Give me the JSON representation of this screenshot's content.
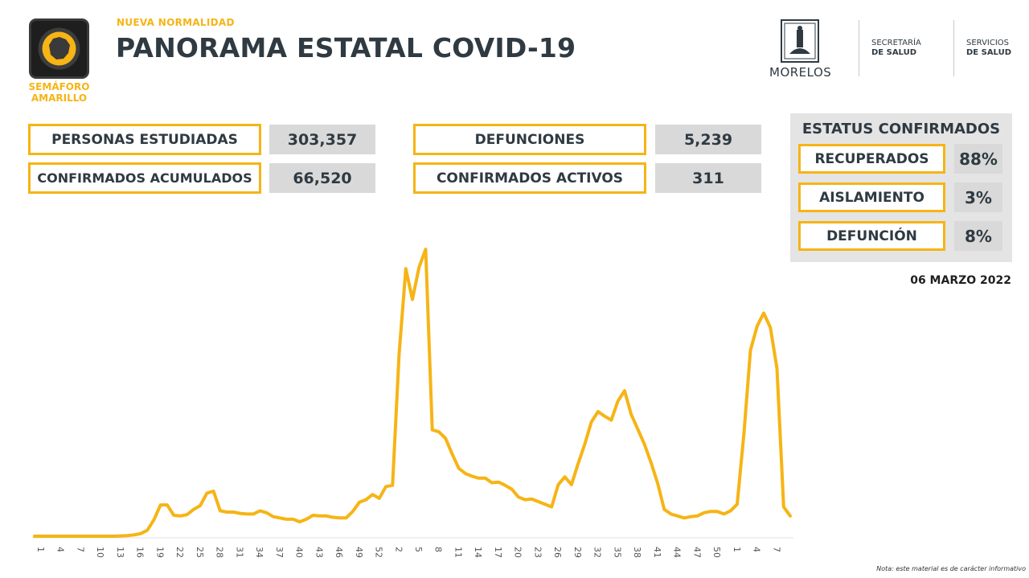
{
  "header": {
    "semaforo_label_1": "SEMÁFORO",
    "semaforo_label_2": "AMARILLO",
    "subtitle": "NUEVA NORMALIDAD",
    "title": "PANORAMA ESTATAL COVID-19"
  },
  "logos": {
    "morelos": "MORELOS",
    "secretaria_1": "SECRETARÍA",
    "secretaria_2": "DE SALUD",
    "servicios_1": "SERVICIOS",
    "servicios_2": "DE SALUD"
  },
  "stats": {
    "personas_label": "PERSONAS ESTUDIADAS",
    "personas_value": "303,357",
    "confirmados_label": "CONFIRMADOS ACUMULADOS",
    "confirmados_value": "66,520",
    "defunciones_label": "DEFUNCIONES",
    "defunciones_value": "5,239",
    "activos_label": "CONFIRMADOS ACTIVOS",
    "activos_value": "311"
  },
  "estatus": {
    "title": "ESTATUS CONFIRMADOS",
    "items": [
      {
        "label": "RECUPERADOS",
        "value": "88%"
      },
      {
        "label": "AISLAMIENTO",
        "value": "3%"
      },
      {
        "label": "DEFUNCIÓN",
        "value": "8%"
      }
    ]
  },
  "date": "06 MARZO 2022",
  "note": "Nota: este material es de carácter informativo",
  "colors": {
    "accent": "#f6b415",
    "text": "#2f3a42",
    "value_bg": "#d9d9d9",
    "panel_bg": "#e4e4e4"
  },
  "chart_data": {
    "type": "line",
    "title": "",
    "xlabel": "",
    "ylabel": "",
    "tick_labels": [
      "1",
      "4",
      "7",
      "10",
      "13",
      "16",
      "19",
      "22",
      "25",
      "28",
      "31",
      "34",
      "37",
      "40",
      "43",
      "46",
      "49",
      "52",
      "2",
      "5",
      "8",
      "11",
      "14",
      "17",
      "20",
      "23",
      "26",
      "29",
      "32",
      "35",
      "38",
      "41",
      "44",
      "47",
      "50",
      "1",
      "4",
      "7"
    ],
    "series": [
      {
        "color": "#f6b415",
        "values": [
          0,
          0,
          0,
          0,
          0,
          0,
          0,
          0,
          0,
          0,
          0,
          0,
          0,
          0.5,
          1,
          2,
          4,
          9,
          25,
          48,
          48,
          32,
          31,
          33,
          41,
          47,
          66,
          69,
          39,
          37,
          37,
          35,
          34,
          34,
          39,
          36,
          30,
          28,
          26,
          26,
          22,
          26,
          32,
          31,
          31,
          29,
          28,
          28,
          38,
          52,
          56,
          64,
          58,
          76,
          78,
          280,
          410,
          363,
          412,
          440,
          163,
          160,
          150,
          126,
          104,
          96,
          92,
          89,
          89,
          82,
          83,
          78,
          72,
          60,
          56,
          57,
          53,
          49,
          45,
          79,
          91,
          79,
          111,
          141,
          175,
          191,
          184,
          178,
          207,
          223,
          187,
          164,
          141,
          113,
          81,
          41,
          34,
          31,
          28,
          30,
          31,
          36,
          38,
          38,
          34,
          39,
          49,
          156,
          285,
          322,
          342,
          320,
          257,
          45,
          31
        ]
      }
    ]
  }
}
